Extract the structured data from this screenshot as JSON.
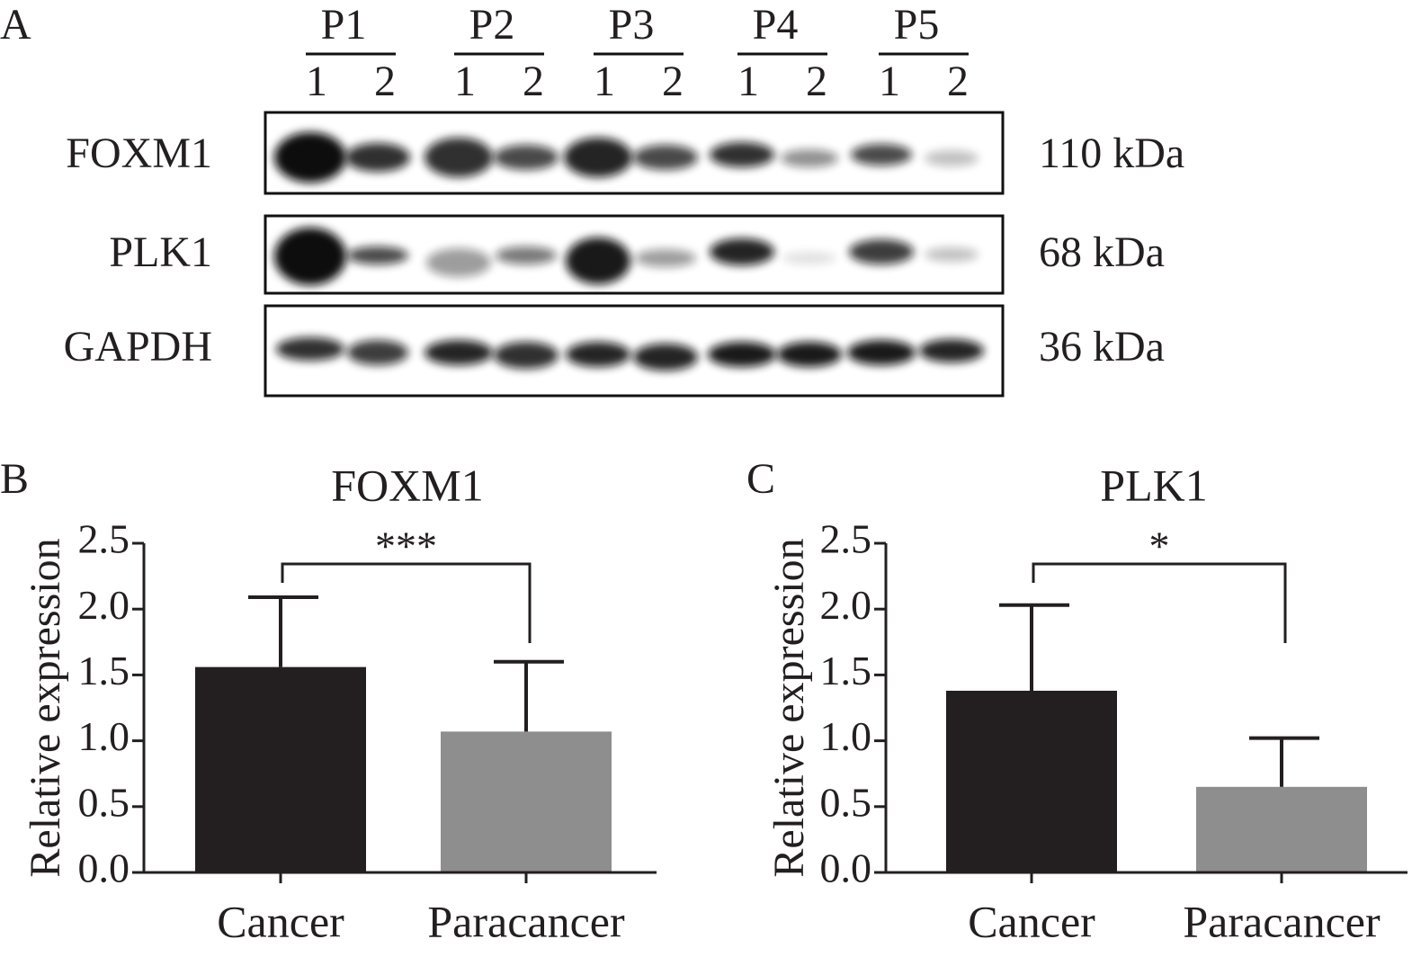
{
  "blot": {
    "label": "A",
    "patients": [
      "P1",
      "P2",
      "P3",
      "P4",
      "P5"
    ],
    "lanes": [
      "1",
      "2"
    ],
    "rows": [
      {
        "protein": "FOXM1",
        "size": "110 kDa"
      },
      {
        "protein": "PLK1",
        "size": "68 kDa"
      },
      {
        "protein": "GAPDH",
        "size": "36 kDa"
      }
    ]
  },
  "chart_data": [
    {
      "type": "bar",
      "panel": "B",
      "title": "FOXM1",
      "y_label": "Relative expression",
      "categories": [
        "Cancer",
        "Paracancer"
      ],
      "values": [
        1.56,
        1.07
      ],
      "errors": [
        0.53,
        0.53
      ],
      "colors": [
        "#231f20",
        "#8f8e8e"
      ],
      "ylim": [
        0,
        2.5
      ],
      "yticks": [
        {
          "value": 0,
          "label": "0.0"
        },
        0.5,
        {
          "value": 1,
          "label": "1.0"
        },
        1.5,
        {
          "value": 2,
          "label": "2.0"
        },
        2.5
      ],
      "annotation": "***"
    },
    {
      "type": "bar",
      "panel": "C",
      "title": "PLK1",
      "y_label": "Relative expression",
      "categories": [
        "Cancer",
        "Paracancer"
      ],
      "values": [
        1.38,
        0.65
      ],
      "errors": [
        0.65,
        0.37
      ],
      "colors": [
        "#231f20",
        "#8f8e8e"
      ],
      "ylim": [
        0,
        2.5
      ],
      "yticks": [
        {
          "value": 0,
          "label": "0.0"
        },
        0.5,
        {
          "value": 1,
          "label": "1.0"
        },
        1.5,
        {
          "value": 2,
          "label": "2.0"
        },
        2.5
      ],
      "annotation": "*"
    }
  ]
}
